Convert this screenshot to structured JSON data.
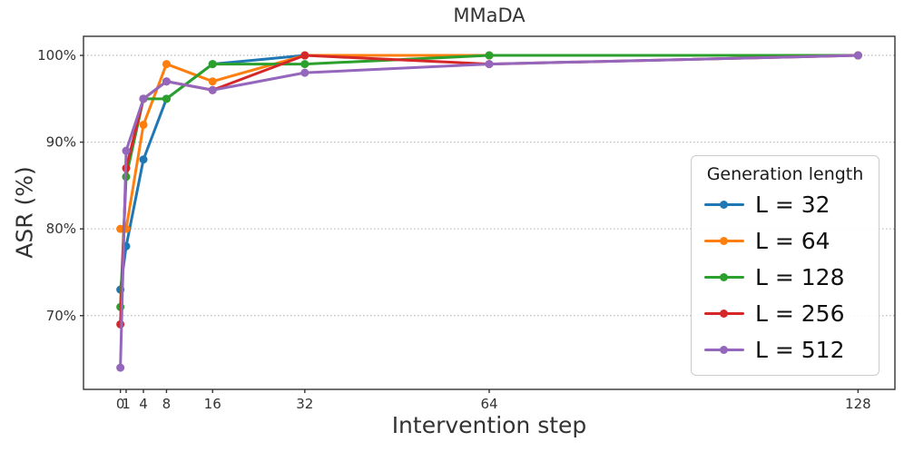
{
  "chart_data": {
    "type": "line",
    "title": "MMaDA",
    "xlabel": "Intervention step",
    "ylabel": "ASR (%)",
    "x": [
      0,
      1,
      4,
      8,
      16,
      32,
      64,
      128
    ],
    "xtick_labels": [
      "0",
      "1",
      "4",
      "8",
      "16",
      "32",
      "64",
      "128"
    ],
    "yticks": [
      70,
      80,
      90,
      100
    ],
    "ytick_suffix": "%",
    "xlim": [
      -6.4,
      134.4
    ],
    "ylim": [
      61.5,
      102.2
    ],
    "grid": "horizontal-dotted",
    "grid_color": "#bbbbbb",
    "axis_color": "#333333",
    "legend": {
      "title": "Generation length",
      "position": "center-right"
    },
    "series": [
      {
        "name": "L = 32",
        "color": "#1f77b4",
        "values": [
          73,
          78,
          88,
          95,
          99,
          100,
          100,
          100
        ]
      },
      {
        "name": "L = 64",
        "color": "#ff7f0e",
        "values": [
          80,
          80,
          92,
          99,
          97,
          100,
          100,
          100
        ]
      },
      {
        "name": "L = 128",
        "color": "#2ca02c",
        "values": [
          71,
          86,
          95,
          95,
          99,
          99,
          100,
          100
        ]
      },
      {
        "name": "L = 256",
        "color": "#d62728",
        "values": [
          69,
          87,
          95,
          97,
          96,
          100,
          99,
          100
        ]
      },
      {
        "name": "L = 512",
        "color": "#9467bd",
        "values": [
          64,
          89,
          95,
          97,
          96,
          98,
          99,
          100
        ]
      }
    ]
  }
}
